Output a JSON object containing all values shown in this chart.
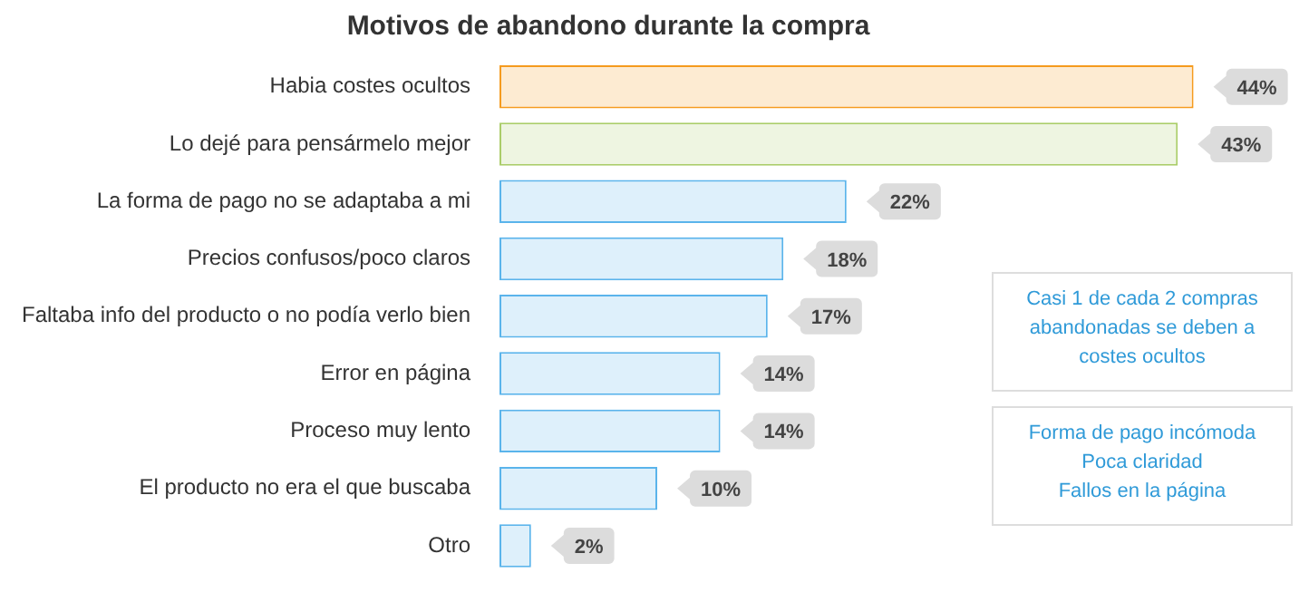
{
  "chart_data": {
    "type": "bar",
    "orientation": "horizontal",
    "title": "Motivos de abandono durante la compra",
    "categories": [
      "Habia costes ocultos",
      "Lo dejé para pensármelo mejor",
      "La forma de pago no se adaptaba a mi",
      "Precios confusos/poco claros",
      "Faltaba info del producto o no podía verlo bien",
      "Error en página",
      "Proceso muy lento",
      "El producto no era el que buscaba",
      "Otro"
    ],
    "values": [
      44,
      43,
      22,
      18,
      17,
      14,
      14,
      10,
      2
    ],
    "colors": [
      "#fdebd2",
      "#eef5e1",
      "#def0fb",
      "#def0fb",
      "#def0fb",
      "#def0fb",
      "#def0fb",
      "#def0fb",
      "#def0fb"
    ],
    "value_labels": [
      "44%",
      "43%",
      "22%",
      "18%",
      "17%",
      "14%",
      "14%",
      "10%",
      "2%"
    ],
    "legend": false,
    "annotations": [
      "Casi 1 de cada 2 compras\nabandonadas se deben a\ncostes ocultos",
      "Forma de pago incómoda\nPoca claridad\nFallos en la página"
    ]
  }
}
